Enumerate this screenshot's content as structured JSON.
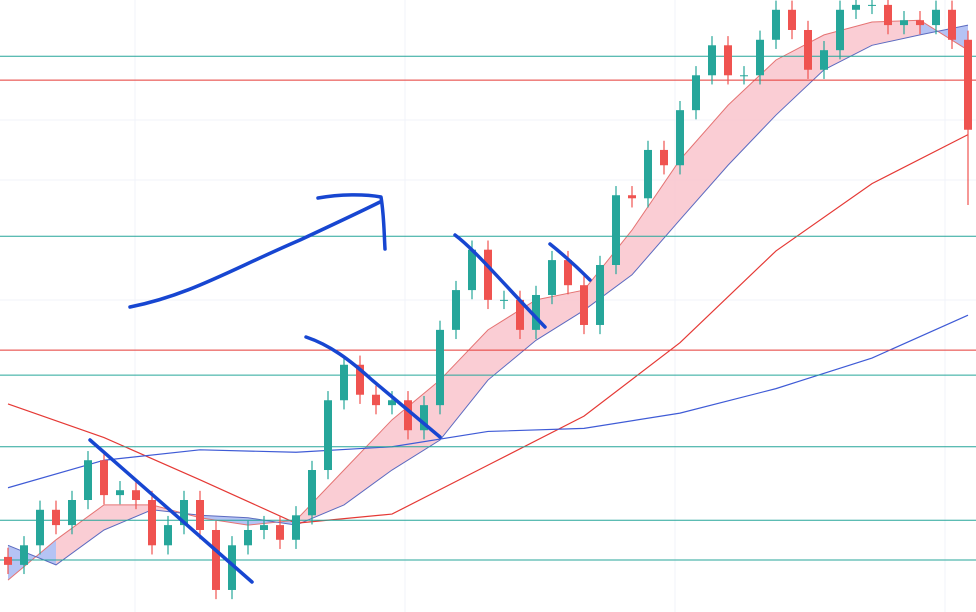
{
  "chart_data": {
    "type": "candlestick",
    "ylim": [
      0,
      100
    ],
    "up_color": "#26a69a",
    "down_color": "#ef5350",
    "open": [
      9.0,
      7.7,
      10.9,
      16.7,
      14.2,
      18.3,
      24.8,
      19.1,
      19.9,
      18.3,
      10.9,
      14.2,
      18.3,
      13.4,
      3.6,
      10.9,
      13.4,
      14.2,
      11.8,
      15.8,
      23.2,
      34.6,
      40.4,
      35.5,
      33.8,
      34.6,
      29.7,
      33.8,
      46.1,
      52.6,
      59.2,
      51.0,
      51.0,
      46.1,
      51.8,
      57.5,
      53.4,
      46.9,
      56.7,
      68.1,
      67.6,
      75.5,
      73.0,
      82.0,
      87.7,
      92.6,
      87.7,
      87.7,
      93.5,
      98.4,
      95.1,
      88.6,
      91.8,
      98.4,
      99.2,
      99.2,
      95.9,
      96.7,
      95.9,
      98.4,
      93.5
    ],
    "high": [
      10.5,
      12.4,
      18.2,
      18.2,
      19.8,
      26.3,
      26.3,
      21.4,
      21.4,
      19.8,
      15.7,
      19.8,
      19.8,
      14.9,
      12.4,
      14.9,
      15.7,
      15.7,
      17.3,
      24.7,
      36.1,
      41.9,
      41.9,
      37.0,
      36.1,
      36.1,
      35.3,
      47.6,
      54.1,
      60.7,
      60.7,
      52.5,
      52.5,
      53.3,
      59.0,
      59.0,
      54.9,
      58.2,
      69.6,
      69.6,
      77.0,
      77.0,
      83.5,
      89.2,
      94.1,
      94.1,
      89.2,
      95.0,
      99.9,
      99.9,
      96.6,
      93.3,
      99.9,
      100.7,
      100.7,
      100.7,
      98.2,
      98.2,
      99.9,
      99.9,
      95.0
    ],
    "low": [
      6.2,
      6.2,
      9.4,
      12.7,
      12.7,
      16.8,
      17.6,
      17.6,
      16.8,
      9.4,
      9.4,
      12.7,
      11.9,
      2.1,
      2.1,
      9.4,
      11.9,
      10.3,
      10.3,
      14.3,
      21.7,
      33.1,
      34.0,
      32.3,
      32.3,
      28.2,
      28.2,
      32.3,
      44.6,
      51.1,
      49.5,
      49.5,
      44.6,
      44.6,
      50.3,
      51.9,
      45.4,
      45.4,
      55.2,
      66.1,
      66.1,
      71.5,
      71.5,
      80.5,
      86.2,
      86.2,
      86.2,
      86.2,
      92.0,
      93.6,
      87.1,
      87.1,
      90.3,
      96.9,
      97.7,
      94.4,
      94.4,
      94.4,
      94.4,
      92.0,
      66.5
    ],
    "close": [
      7.7,
      10.9,
      16.7,
      14.2,
      18.3,
      24.8,
      19.1,
      19.9,
      18.3,
      10.9,
      14.2,
      18.3,
      13.4,
      3.6,
      10.9,
      13.4,
      14.2,
      11.8,
      15.8,
      23.2,
      34.6,
      40.4,
      35.5,
      33.8,
      34.6,
      29.7,
      33.8,
      46.1,
      52.6,
      59.2,
      51.0,
      51.0,
      46.1,
      51.8,
      57.5,
      53.4,
      46.9,
      56.7,
      68.1,
      67.6,
      75.5,
      73.0,
      82.0,
      87.7,
      92.6,
      87.7,
      87.7,
      93.5,
      98.4,
      95.1,
      88.6,
      91.8,
      98.4,
      99.2,
      99.2,
      95.9,
      96.7,
      95.9,
      98.4,
      93.5,
      78.8
    ],
    "levels": [
      {
        "value": 90.8,
        "color": "#26a69a"
      },
      {
        "value": 86.9,
        "color": "#e53935"
      },
      {
        "value": 61.4,
        "color": "#26a69a"
      },
      {
        "value": 42.8,
        "color": "#e53935"
      },
      {
        "value": 38.7,
        "color": "#26a69a"
      },
      {
        "value": 27.0,
        "color": "#26a69a"
      },
      {
        "value": 15.0,
        "color": "#26a69a"
      },
      {
        "value": 8.5,
        "color": "#26a69a"
      }
    ],
    "cloud": {
      "x": [
        0,
        3,
        6,
        9,
        12,
        15,
        18,
        21,
        24,
        27,
        30,
        33,
        36,
        39,
        42,
        45,
        48,
        51,
        54,
        57,
        60
      ],
      "fast": [
        5.2,
        11.8,
        17.5,
        17.5,
        15.4,
        14.2,
        15.0,
        23.2,
        31.4,
        37.9,
        46.1,
        51.0,
        52.6,
        62.4,
        73.9,
        82.8,
        90.2,
        94.3,
        96.4,
        96.7,
        91.8
      ],
      "slow": [
        10.9,
        7.7,
        13.4,
        16.7,
        15.8,
        15.4,
        14.2,
        17.5,
        23.2,
        28.1,
        37.9,
        44.4,
        49.3,
        55.1,
        64.1,
        73.0,
        81.2,
        88.6,
        92.6,
        94.3,
        95.9
      ],
      "up_color": "#f9c4cc",
      "down_color": "#a8b8f2",
      "fast_color": "#e57373",
      "slow_color": "#5c6bc0"
    },
    "lines": [
      {
        "color": "#e53935",
        "x": [
          0,
          6,
          12,
          18,
          24,
          30,
          36,
          42,
          48,
          54,
          60
        ],
        "values": [
          34,
          28.5,
          21.6,
          14.5,
          16,
          24,
          32,
          44,
          59,
          70,
          78
        ]
      },
      {
        "color": "#3f5bd6",
        "x": [
          0,
          6,
          12,
          18,
          24,
          30,
          36,
          42,
          48,
          54,
          60
        ],
        "values": [
          20.3,
          24.8,
          26.5,
          26.1,
          27,
          29.5,
          30,
          32.5,
          36.5,
          41.5,
          48.5
        ]
      }
    ]
  }
}
